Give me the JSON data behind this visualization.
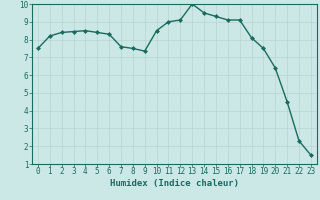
{
  "x": [
    0,
    1,
    2,
    3,
    4,
    5,
    6,
    7,
    8,
    9,
    10,
    11,
    12,
    13,
    14,
    15,
    16,
    17,
    18,
    19,
    20,
    21,
    22,
    23
  ],
  "y": [
    7.5,
    8.2,
    8.4,
    8.45,
    8.5,
    8.4,
    8.3,
    7.6,
    7.5,
    7.35,
    8.5,
    9.0,
    9.1,
    10.0,
    9.5,
    9.3,
    9.1,
    9.1,
    8.1,
    7.5,
    6.4,
    4.5,
    2.3,
    1.5
  ],
  "line_color": "#1a6b5e",
  "marker": "D",
  "marker_size": 2.0,
  "bg_color": "#cce8e6",
  "grid_color": "#b8d4d2",
  "xlabel": "Humidex (Indice chaleur)",
  "xlim": [
    -0.5,
    23.5
  ],
  "ylim": [
    1,
    10
  ],
  "xticks": [
    0,
    1,
    2,
    3,
    4,
    5,
    6,
    7,
    8,
    9,
    10,
    11,
    12,
    13,
    14,
    15,
    16,
    17,
    18,
    19,
    20,
    21,
    22,
    23
  ],
  "yticks": [
    1,
    2,
    3,
    4,
    5,
    6,
    7,
    8,
    9,
    10
  ],
  "axis_color": "#1a6b5e",
  "label_fontsize": 6.5,
  "tick_fontsize": 5.5,
  "linewidth": 1.0
}
